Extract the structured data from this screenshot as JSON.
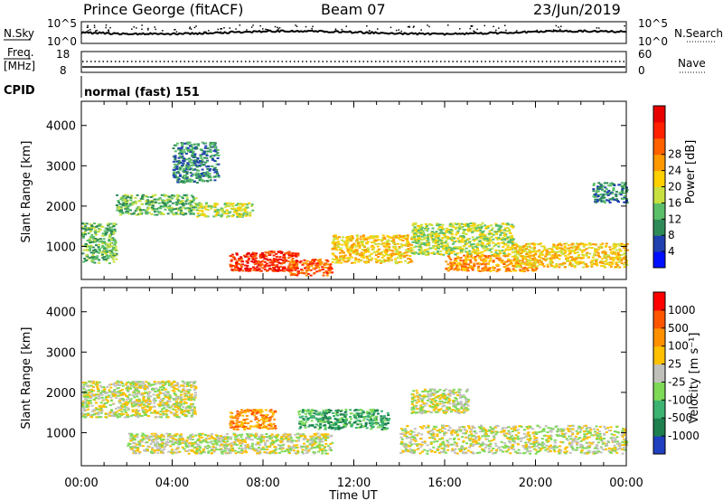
{
  "header": {
    "station": "Prince George (fitACF)",
    "beam": "Beam 07",
    "date": "23/Jun/2019",
    "cpid_label": "CPID",
    "cpid_value": "normal (fast) 151"
  },
  "nsky_panel": {
    "left_label": "N.Sky",
    "right_label": "N.Search",
    "left_ticks": [
      "10^5",
      "10^0"
    ],
    "right_ticks": [
      "10^5",
      "10^0"
    ]
  },
  "freq_panel": {
    "left_label_line1": "Freq.",
    "left_label_line2": "[MHz]",
    "right_label": "Nave",
    "left_ticks": [
      "18",
      "8"
    ],
    "right_ticks": [
      "60",
      "0"
    ]
  },
  "chart_data": [
    {
      "type": "heatmap",
      "name": "power",
      "ylabel": "Slant Range [km]",
      "xlabel": "",
      "ylim": [
        180,
        4600
      ],
      "yticks": [
        1000,
        2000,
        3000,
        4000
      ],
      "xlim_hours": [
        0,
        24
      ],
      "colorbar": {
        "label": "Power [dB]",
        "ticks": [
          "4",
          "8",
          "12",
          "16",
          "20",
          "24",
          "28"
        ],
        "colors": [
          "#0010ff",
          "#2040b0",
          "#2e8b57",
          "#5bbf6a",
          "#c8e040",
          "#ffd000",
          "#ff9900",
          "#ff6000",
          "#ff2000",
          "#e80000"
        ]
      },
      "regions": [
        {
          "t": [
            0.0,
            1.5
          ],
          "r": [
            600,
            1600
          ],
          "level": 3
        },
        {
          "t": [
            1.5,
            5.0
          ],
          "r": [
            1800,
            2300
          ],
          "level": 3
        },
        {
          "t": [
            5.0,
            7.5
          ],
          "r": [
            1750,
            2100
          ],
          "level": 4
        },
        {
          "t": [
            6.5,
            9.5
          ],
          "r": [
            400,
            900
          ],
          "level": 8
        },
        {
          "t": [
            9.0,
            11.0
          ],
          "r": [
            300,
            700
          ],
          "level": 7
        },
        {
          "t": [
            11.0,
            14.5
          ],
          "r": [
            600,
            1300
          ],
          "level": 5
        },
        {
          "t": [
            14.5,
            19.0
          ],
          "r": [
            800,
            1600
          ],
          "level": 4
        },
        {
          "t": [
            16.0,
            20.0
          ],
          "r": [
            400,
            800
          ],
          "level": 6
        },
        {
          "t": [
            19.0,
            24.0
          ],
          "r": [
            500,
            1100
          ],
          "level": 5
        },
        {
          "t": [
            4.0,
            6.0
          ],
          "r": [
            2600,
            3600
          ],
          "level": 2
        },
        {
          "t": [
            22.5,
            24.0
          ],
          "r": [
            2100,
            2600
          ],
          "level": 2
        }
      ]
    },
    {
      "type": "heatmap",
      "name": "velocity",
      "ylabel": "Slant Range [km]",
      "xlabel": "Time UT",
      "ylim": [
        180,
        4600
      ],
      "yticks": [
        1000,
        2000,
        3000,
        4000
      ],
      "xticks": [
        "00:00",
        "04:00",
        "08:00",
        "12:00",
        "16:00",
        "20:00",
        "00:00"
      ],
      "xlim_hours": [
        0,
        24
      ],
      "colorbar": {
        "label": "Velocity [m s⁻¹]",
        "ticks": [
          "1000",
          "500",
          "100",
          "25",
          "-25",
          "-100",
          "-500",
          "-1000"
        ],
        "colors": [
          "#2040c0",
          "#1e7f4f",
          "#3cb371",
          "#7ed957",
          "#c0c0bb",
          "#ffc000",
          "#ff9000",
          "#ff5500",
          "#ff0000"
        ]
      },
      "regions": [
        {
          "t": [
            0.0,
            5.0
          ],
          "r": [
            1400,
            2300
          ],
          "level": 4
        },
        {
          "t": [
            6.5,
            8.5
          ],
          "r": [
            1100,
            1600
          ],
          "level": 6
        },
        {
          "t": [
            9.5,
            13.5
          ],
          "r": [
            1100,
            1600
          ],
          "level": 2
        },
        {
          "t": [
            2.0,
            11.0
          ],
          "r": [
            500,
            1000
          ],
          "level": 4
        },
        {
          "t": [
            14.0,
            24.0
          ],
          "r": [
            500,
            1200
          ],
          "level": 4
        },
        {
          "t": [
            14.5,
            17.0
          ],
          "r": [
            1500,
            2100
          ],
          "level": 4
        }
      ]
    }
  ]
}
